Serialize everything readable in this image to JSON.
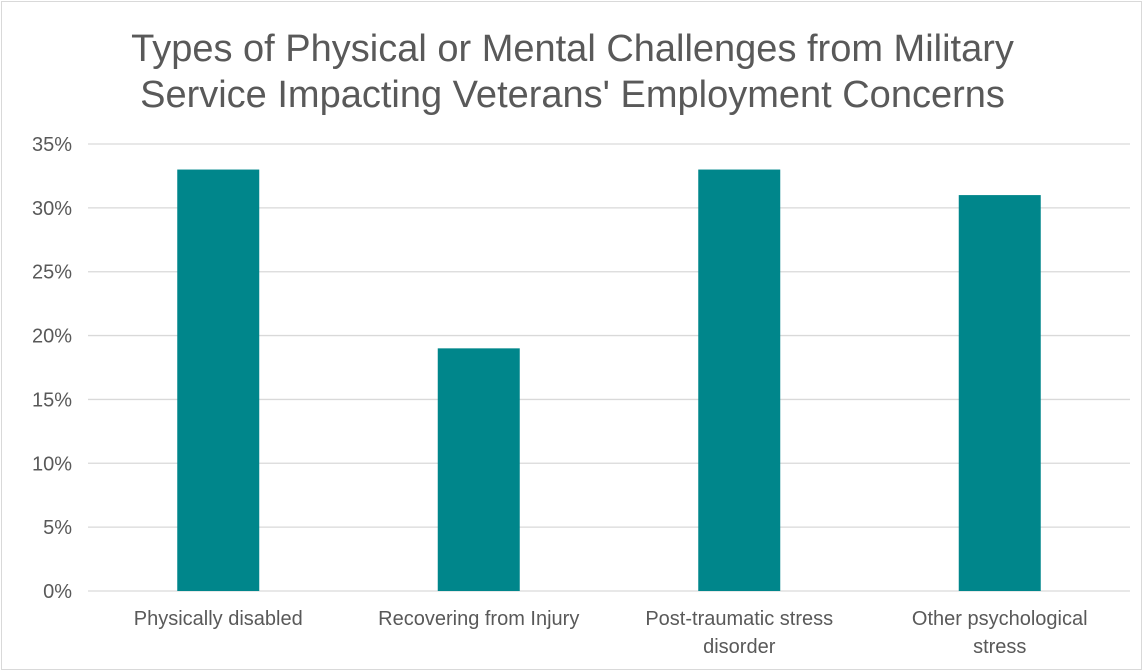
{
  "chart_data": {
    "type": "bar",
    "title_lines": [
      "Types of Physical or Mental Challenges from Military",
      "Service Impacting Veterans' Employment Concerns"
    ],
    "categories": [
      [
        "Physically disabled"
      ],
      [
        "Recovering from Injury"
      ],
      [
        "Post-traumatic stress",
        "disorder"
      ],
      [
        "Other psychological",
        "stress"
      ]
    ],
    "values": [
      33,
      19,
      33,
      31
    ],
    "ylim": [
      0,
      35
    ],
    "yticks": [
      "0%",
      "5%",
      "10%",
      "15%",
      "20%",
      "25%",
      "30%",
      "35%"
    ],
    "grid": true,
    "bar_color": "#00868B",
    "grid_color": "#d9d9d9",
    "text_color": "#595959"
  }
}
